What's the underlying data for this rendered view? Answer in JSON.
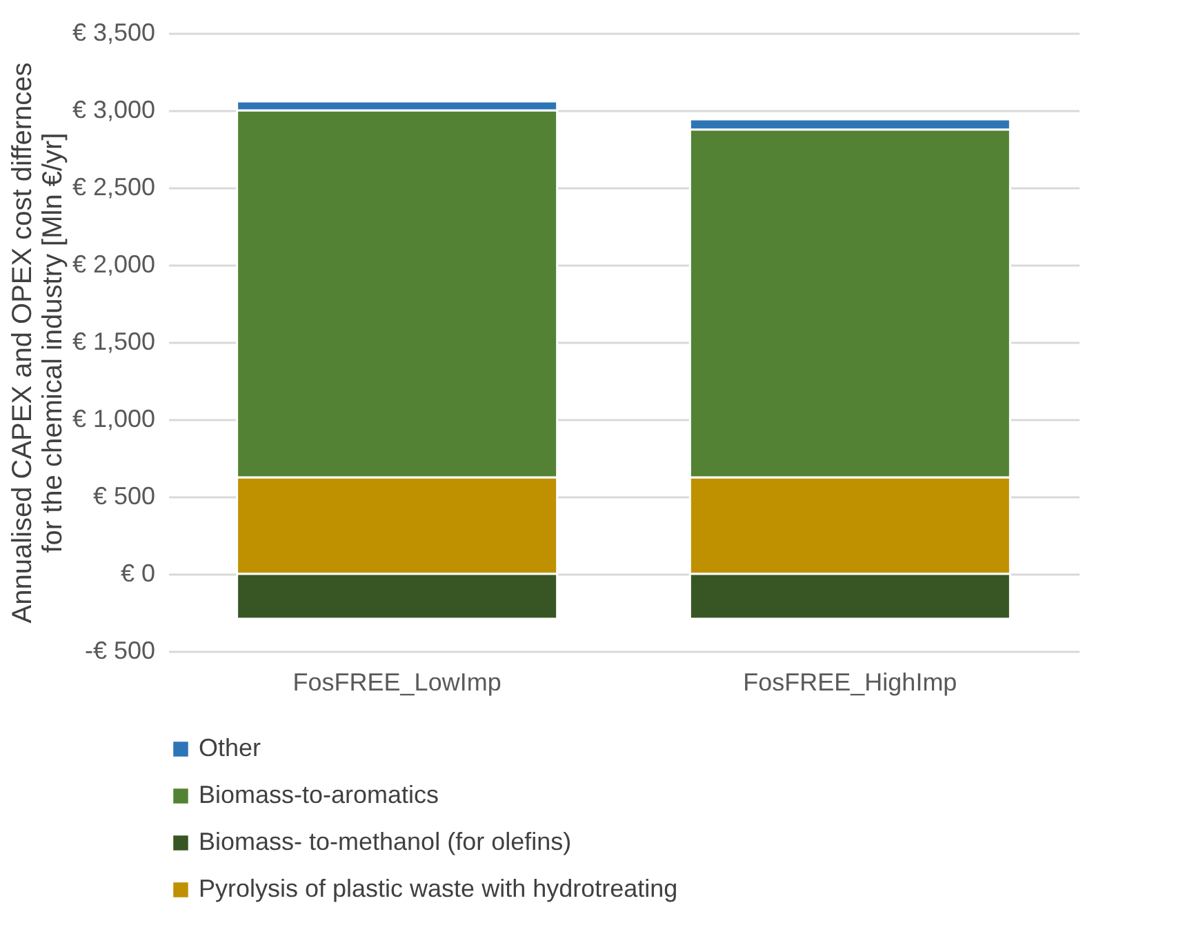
{
  "chart_data": {
    "type": "bar",
    "stacked": true,
    "ylabel": "Annualised CAPEX and OPEX cost differnces for the chemical industry [Mln €/yr]",
    "categories": [
      "FosFREE_LowImp",
      "FosFREE_HighImp"
    ],
    "series": [
      {
        "name": "Pyrolysis of plastic waste with hydrotreating",
        "color": "#bf9000",
        "values": [
          625,
          625
        ]
      },
      {
        "name": "Biomass- to-methanol (for olefins)",
        "color": "#375623",
        "values": [
          -290,
          -290
        ]
      },
      {
        "name": "Biomass-to-aromatics",
        "color": "#548235",
        "values": [
          2375,
          2251
        ]
      },
      {
        "name": "Other",
        "color": "#2e75b6",
        "values": [
          58,
          66
        ]
      }
    ],
    "ylim": [
      -500,
      3500
    ],
    "yticks": [
      {
        "value": -500,
        "label": "-€ 500"
      },
      {
        "value": 0,
        "label": "€ 0"
      },
      {
        "value": 500,
        "label": "€ 500"
      },
      {
        "value": 1000,
        "label": "€ 1,000"
      },
      {
        "value": 1500,
        "label": "€ 1,500"
      },
      {
        "value": 2000,
        "label": "€ 2,000"
      },
      {
        "value": 2500,
        "label": "€ 2,500"
      },
      {
        "value": 3000,
        "label": "€ 3,000"
      },
      {
        "value": 3500,
        "label": "€ 3,500"
      }
    ],
    "grid": "y",
    "legend": "bottom"
  }
}
